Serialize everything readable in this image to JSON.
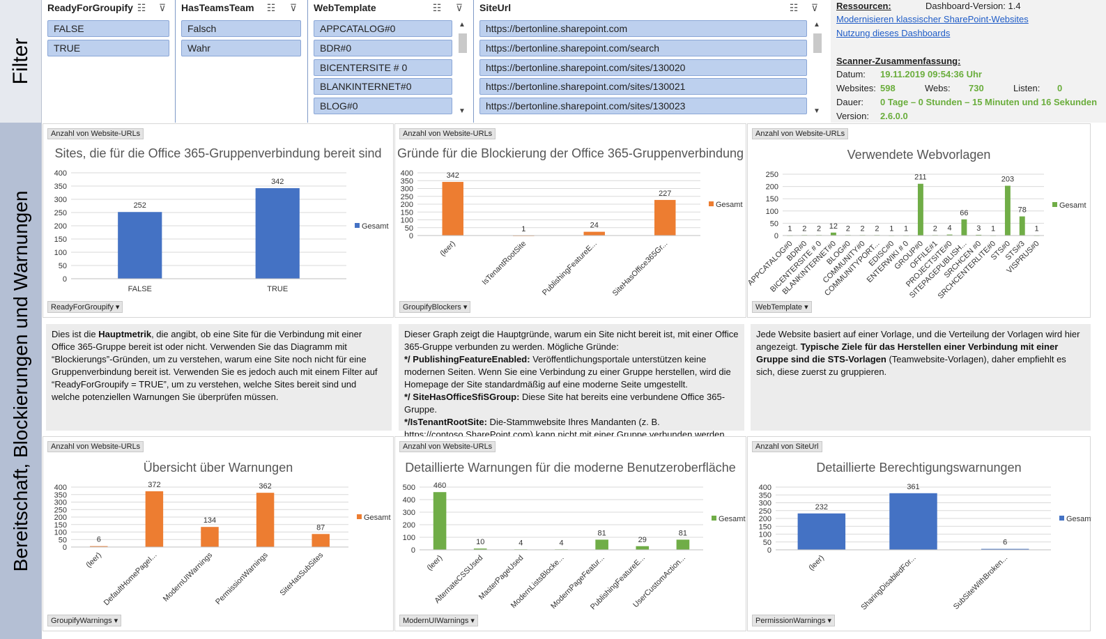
{
  "side": {
    "filter": "Filter",
    "main": "Bereitschaft, Blockierungen und Warnungen"
  },
  "slicers": [
    {
      "title": "ReadyForGroupify",
      "items": [
        "FALSE",
        "TRUE"
      ]
    },
    {
      "title": "HasTeamsTeam",
      "items": [
        "Falsch",
        "Wahr"
      ]
    },
    {
      "title": "WebTemplate",
      "items": [
        "APPCATALOG#0",
        "BDR#0",
        "BICENTERSITE # 0",
        "BLANKINTERNET#0",
        "BLOG#0"
      ]
    },
    {
      "title": "SiteUrl",
      "items": [
        "https://bertonline.sharepoint.com",
        "https://bertonline.sharepoint.com/search",
        "https://bertonline.sharepoint.com/sites/130020",
        "https://bertonline.sharepoint.com/sites/130021",
        "https://bertonline.sharepoint.com/sites/130023"
      ]
    }
  ],
  "resources": {
    "heading": "Ressourcen:",
    "version_label": "Dashboard-Version: 1.4",
    "link1": "Modernisieren klassischer SharePoint-Websites",
    "link2": "Nutzung dieses Dashboards",
    "summary": "Scanner-Zusammenfassung:",
    "date_label": "Datum:",
    "date_value": "19.11.2019 09:54:36 Uhr",
    "websites_label": "Websites:",
    "websites_value": "598",
    "webs_label": "Webs:",
    "webs_value": "730",
    "lists_label": "Listen:",
    "lists_value": "0",
    "duration_label": "Dauer:",
    "duration_value": "0 Tage – 0 Stunden – 15 Minuten und 16 Sekunden",
    "scanver_label": "Version:",
    "scanver_value": "2.6.0.0"
  },
  "colors": {
    "blue": "#4472c4",
    "orange": "#ed7d31",
    "green": "#70ad47"
  },
  "panels": [
    {
      "tag": "Anzahl von Website-URLs",
      "ftag": "ReadyForGroupify",
      "chart_data": {
        "type": "bar",
        "title": "Sites, die für die Office 365-Gruppenverbindung bereit sind",
        "categories": [
          "FALSE",
          "TRUE"
        ],
        "values": [
          252,
          342
        ],
        "yticks": [
          "0",
          "50",
          "100",
          "150",
          "200",
          "250",
          "300",
          "350",
          "400"
        ],
        "ylim": [
          0,
          400
        ],
        "series": [
          {
            "name": "Gesamt"
          }
        ],
        "color": "#4472c4",
        "rotate": false
      }
    },
    {
      "tag": "Anzahl von Website-URLs",
      "ftag": "GroupifyBlockers",
      "chart_data": {
        "type": "bar",
        "title": "Gründe für die Blockierung der Office 365-Gruppenverbindung",
        "categories": [
          "(leer)",
          "IsTenantRootSite",
          "PublishingFeatureE...",
          "SiteHasOffice365Gr..."
        ],
        "values": [
          342,
          1,
          24,
          227
        ],
        "yticks": [
          "0",
          "50",
          "100",
          "150",
          "200",
          "250",
          "300",
          "350",
          "400"
        ],
        "ylim": [
          0,
          400
        ],
        "series": [
          {
            "name": "Gesamt"
          }
        ],
        "color": "#ed7d31",
        "rotate": true
      }
    },
    {
      "tag": "Anzahl von Website-URLs",
      "ftag": "WebTemplate",
      "chart_data": {
        "type": "bar",
        "title": "Verwendete Webvorlagen",
        "categories": [
          "APPCATALOG#0",
          "BDR#0",
          "BICENTERSITE # 0",
          "BLANKINTERNET#0",
          "BLOG#0",
          "COMMUNITY#0",
          "COMMUNITYPORT...",
          "EDISC#0",
          "ENTERWIKI # 0",
          "GROUP#0",
          "OFFILE#1",
          "PROJECTSITE#0",
          "SITEPAGEPUBLISH...",
          "SRCHCEN #0",
          "SRCHCENTERLITE#0",
          "STS#0",
          "STS#3",
          "VISPRUS#0"
        ],
        "values": [
          1,
          2,
          2,
          12,
          2,
          2,
          2,
          1,
          1,
          211,
          2,
          4,
          66,
          3,
          1,
          203,
          78,
          1
        ],
        "yticks": [
          "0",
          "50",
          "100",
          "150",
          "200",
          "250"
        ],
        "ylim": [
          0,
          250
        ],
        "series": [
          {
            "name": "Gesamt"
          }
        ],
        "color": "#70ad47",
        "rotate": true
      }
    },
    {
      "tag": "Anzahl von Website-URLs",
      "ftag": "GroupifyWarnings",
      "chart_data": {
        "type": "bar",
        "title": "Übersicht über Warnungen",
        "categories": [
          "(leer)",
          "DefaultHomePageI...",
          "ModernUIWarnings",
          "PermissionWarnings",
          "SiteHasSubSites"
        ],
        "values": [
          6,
          372,
          134,
          362,
          87
        ],
        "yticks": [
          "0",
          "50",
          "100",
          "150",
          "200",
          "250",
          "300",
          "350",
          "400"
        ],
        "ylim": [
          0,
          400
        ],
        "series": [
          {
            "name": "Gesamt"
          }
        ],
        "color": "#ed7d31",
        "rotate": true
      }
    },
    {
      "tag": "Anzahl von Website-URLs",
      "ftag": "ModernUIWarnings",
      "chart_data": {
        "type": "bar",
        "title": "Detaillierte Warnungen für die moderne Benutzeroberfläche",
        "categories": [
          "(leer)",
          "AlternateCSSUsed",
          "MasterPageUsed",
          "ModernListsBlocke...",
          "ModernPageFeatur...",
          "PublishingFeatureE...",
          "UserCustomAction..."
        ],
        "values": [
          460,
          10,
          4,
          4,
          81,
          29,
          81
        ],
        "yticks": [
          "0",
          "100",
          "200",
          "300",
          "400",
          "500"
        ],
        "ylim": [
          0,
          500
        ],
        "series": [
          {
            "name": "Gesamt"
          }
        ],
        "color": "#70ad47",
        "rotate": true
      }
    },
    {
      "tag": "Anzahl von SiteUrl",
      "ftag": "PermissionWarnings",
      "chart_data": {
        "type": "bar",
        "title": "Detaillierte Berechtigungswarnungen",
        "categories": [
          "(leer)",
          "SharingDisabledFor...",
          "SubSiteWithBroken..."
        ],
        "values": [
          232,
          361,
          6
        ],
        "yticks": [
          "0",
          "50",
          "100",
          "150",
          "200",
          "250",
          "300",
          "350",
          "400"
        ],
        "ylim": [
          0,
          400
        ],
        "series": [
          {
            "name": "Gesamt"
          }
        ],
        "color": "#4472c4",
        "rotate": true
      }
    }
  ],
  "texts": {
    "t1_a": "Dies ist die ",
    "t1_b": "Hauptmetrik",
    "t1_c": ", die angibt, ob eine Site für die Verbindung mit einer Office 365-Gruppe bereit ist oder nicht. Verwenden Sie das Diagramm mit “Blockierungs”-Gründen, um zu verstehen, warum eine Site noch nicht für eine Gruppenverbindung bereit ist. Verwenden Sie es jedoch auch mit einem Filter auf “ReadyForGroupify = TRUE”, um zu verstehen, welche Sites bereit sind und welche potenziellen Warnungen Sie überprüfen müssen.",
    "t2_intro": "Dieser Graph zeigt die Hauptgründe, warum ein Site nicht bereit ist, mit einer Office 365-Gruppe verbunden zu werden. Mögliche Gründe:",
    "t2_b1": "*/ PublishingFeatureEnabled:",
    "t2_r1": " Veröffentlichungsportale unterstützen keine modernen Seiten. Wenn Sie eine Verbindung zu einer Gruppe herstellen, wird die Homepage der Site standardmäßig auf eine moderne Seite umgestellt.",
    "t2_b2": "*/ SiteHasOfficeSfiSGroup:",
    "t2_r2": " Diese Site hat bereits eine verbundene Office 365-Gruppe.",
    "t2_b3": "*/IsTenantRootSite:",
    "t2_r3": " Die-Stammwebsite Ihres Mandanten (z. B. https://contoso.SharePoint.com) kann nicht mit einer Gruppe verbunden werden.",
    "t3_a": "Jede Website basiert auf einer Vorlage, und die Verteilung der Vorlagen wird hier angezeigt. ",
    "t3_b": "Typische Ziele für das Herstellen einer Verbindung mit einer Gruppe sind die STS-Vorlagen",
    "t3_c": " (Teamwebsite-Vorlagen), daher empfiehlt es sich, diese zuerst zu gruppieren."
  }
}
